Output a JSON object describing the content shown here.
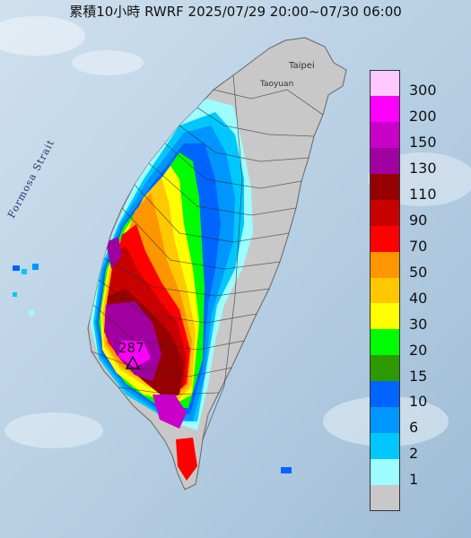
{
  "map": {
    "title": "累積10小時 RWRF 2025/07/29 20:00~07/30 06:00",
    "labels": {
      "strait": "Formosa Strait",
      "taipei": "Taipei",
      "taoyuan": "Taoyuan",
      "max_value": "287"
    },
    "legend": [
      {
        "label": "300",
        "color": "#fdc8fd"
      },
      {
        "label": "200",
        "color": "#fd00fd"
      },
      {
        "label": "150",
        "color": "#c800c8"
      },
      {
        "label": "130",
        "color": "#a000a0"
      },
      {
        "label": "110",
        "color": "#960000"
      },
      {
        "label": "90",
        "color": "#c80000"
      },
      {
        "label": "70",
        "color": "#ff0000"
      },
      {
        "label": "50",
        "color": "#ff9600"
      },
      {
        "label": "40",
        "color": "#ffc800"
      },
      {
        "label": "30",
        "color": "#ffff00"
      },
      {
        "label": "20",
        "color": "#00fc00"
      },
      {
        "label": "15",
        "color": "#2e9800"
      },
      {
        "label": "10",
        "color": "#0064ff"
      },
      {
        "label": "6",
        "color": "#0096ff"
      },
      {
        "label": "2",
        "color": "#00c8ff"
      },
      {
        "label": "1",
        "color": "#9cfcff"
      },
      {
        "label": "",
        "color": "#c8c8c8"
      }
    ],
    "legend_last_label": "1"
  }
}
